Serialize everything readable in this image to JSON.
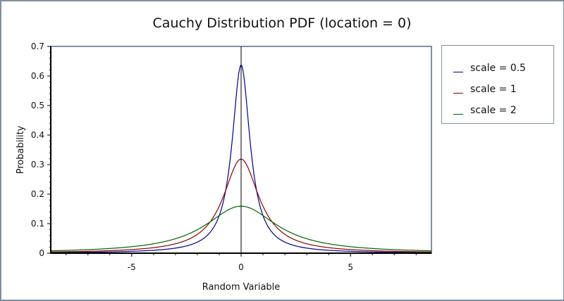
{
  "chart_data": {
    "type": "line",
    "title": "Cauchy Distribution PDF (location = 0)",
    "xlabel": "Random Variable",
    "ylabel": "Probability",
    "xlim": [
      -8.7,
      8.7
    ],
    "ylim": [
      0,
      0.7
    ],
    "x_ticks": [
      -5,
      0,
      5
    ],
    "y_ticks": [
      0,
      0.1,
      0.2,
      0.3,
      0.4,
      0.5,
      0.6,
      0.7
    ],
    "y_tick_labels": [
      "0",
      "0.1",
      "0.2",
      "0.3",
      "0.4",
      "0.5",
      "0.6",
      "0.7"
    ],
    "grid": false,
    "legend_position": "right",
    "series": [
      {
        "name": "scale = 0.5",
        "color": "#00008b",
        "location": 0,
        "scale": 0.5,
        "peak": 0.637,
        "x": [
          -8.7,
          -5,
          -3,
          -2,
          -1,
          -0.5,
          0,
          0.5,
          1,
          2,
          3,
          5,
          8.7
        ],
        "y": [
          0.0021,
          0.0063,
          0.0173,
          0.0374,
          0.1273,
          0.3183,
          0.6366,
          0.3183,
          0.1273,
          0.0374,
          0.0173,
          0.0063,
          0.0021
        ]
      },
      {
        "name": "scale = 1",
        "color": "#8b0000",
        "location": 0,
        "scale": 1,
        "peak": 0.318,
        "x": [
          -8.7,
          -5,
          -3,
          -2,
          -1,
          -0.5,
          0,
          0.5,
          1,
          2,
          3,
          5,
          8.7
        ],
        "y": [
          0.0042,
          0.0122,
          0.0318,
          0.0637,
          0.1592,
          0.2546,
          0.3183,
          0.2546,
          0.1592,
          0.0637,
          0.0318,
          0.0122,
          0.0042
        ]
      },
      {
        "name": "scale = 2",
        "color": "#006400",
        "location": 0,
        "scale": 2,
        "peak": 0.159,
        "x": [
          -8.7,
          -5,
          -3,
          -2,
          -1,
          -0.5,
          0,
          0.5,
          1,
          2,
          3,
          5,
          8.7
        ],
        "y": [
          0.008,
          0.022,
          0.049,
          0.0796,
          0.1273,
          0.1498,
          0.1592,
          0.1498,
          0.1273,
          0.0796,
          0.049,
          0.022,
          0.008
        ]
      }
    ]
  },
  "legend": {
    "items": [
      {
        "label": "scale = 0.5",
        "color": "#00008b"
      },
      {
        "label": "scale = 1",
        "color": "#8b0000"
      },
      {
        "label": "scale = 2",
        "color": "#006400"
      }
    ]
  }
}
